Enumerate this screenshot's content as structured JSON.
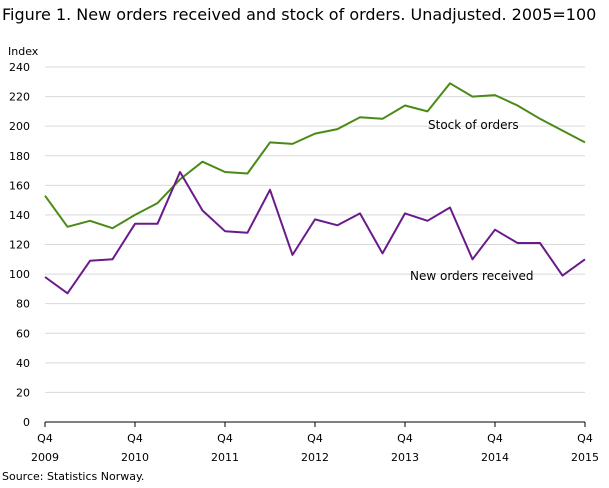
{
  "chart_data": {
    "type": "line",
    "title": "Figure 1. New orders received and stock of orders. Unadjusted. 2005=100",
    "ylabel": "Index",
    "source": "Source: Statistics Norway.",
    "ylim": [
      0,
      240
    ],
    "yticks": [
      0,
      20,
      40,
      60,
      80,
      100,
      120,
      140,
      160,
      180,
      200,
      220,
      240
    ],
    "xlabels": [
      {
        "quarter": "Q4",
        "year": "2009"
      },
      {
        "quarter": "Q4",
        "year": "2010"
      },
      {
        "quarter": "Q4",
        "year": "2011"
      },
      {
        "quarter": "Q4",
        "year": "2012"
      },
      {
        "quarter": "Q4",
        "year": "2013"
      },
      {
        "quarter": "Q4",
        "year": "2014"
      },
      {
        "quarter": "Q4",
        "year": "2015"
      }
    ],
    "grid": "horizontal",
    "x": [
      "2009Q4",
      "2010Q1",
      "2010Q2",
      "2010Q3",
      "2010Q4",
      "2011Q1",
      "2011Q2",
      "2011Q3",
      "2011Q4",
      "2012Q1",
      "2012Q2",
      "2012Q3",
      "2012Q4",
      "2013Q1",
      "2013Q2",
      "2013Q3",
      "2013Q4",
      "2014Q1",
      "2014Q2",
      "2014Q3",
      "2014Q4",
      "2015Q1",
      "2015Q2",
      "2015Q3",
      "2015Q4"
    ],
    "series": [
      {
        "name": "Stock of orders",
        "color": "#4a8a17",
        "values": [
          153,
          132,
          136,
          131,
          140,
          148,
          164,
          176,
          169,
          168,
          189,
          188,
          195,
          198,
          206,
          205,
          214,
          210,
          229,
          220,
          221,
          214,
          205,
          197,
          189
        ]
      },
      {
        "name": "New orders received",
        "color": "#6a1a8a",
        "values": [
          98,
          87,
          109,
          110,
          134,
          134,
          169,
          143,
          129,
          128,
          157,
          113,
          137,
          133,
          141,
          114,
          141,
          136,
          145,
          110,
          130,
          121,
          121,
          99,
          110
        ]
      }
    ]
  }
}
